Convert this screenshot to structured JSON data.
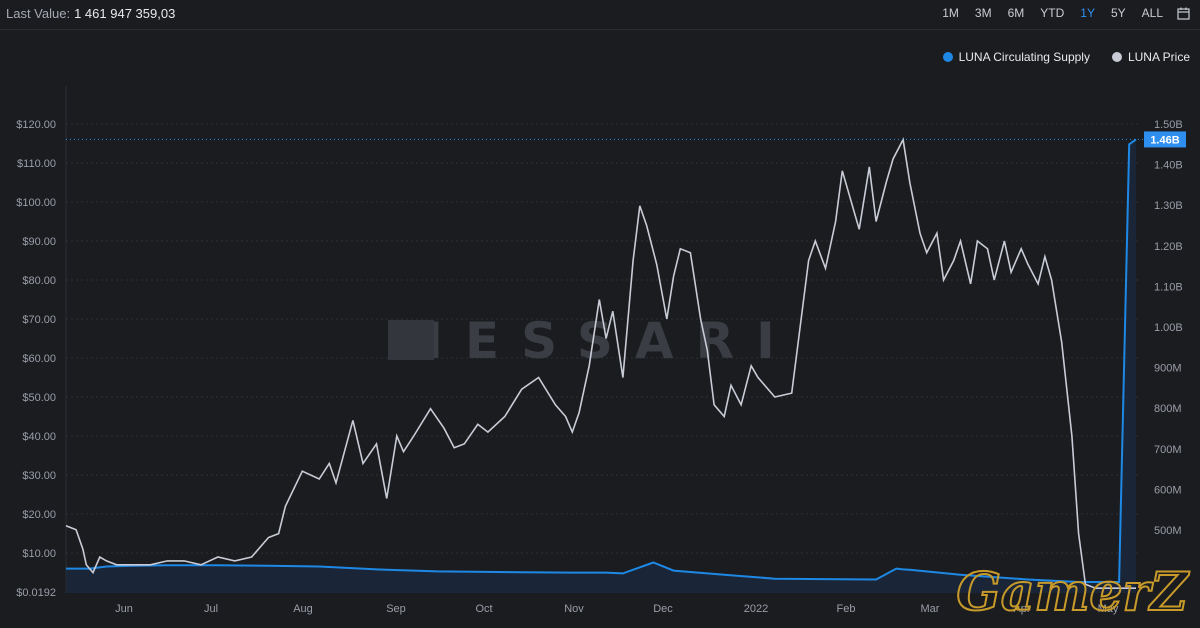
{
  "header": {
    "last_value_label": "Last Value:",
    "last_value": "1 461 947 359,03",
    "ranges": [
      "1M",
      "3M",
      "6M",
      "YTD",
      "1Y",
      "5Y",
      "ALL"
    ],
    "active_range": "1Y"
  },
  "colors": {
    "supply": "#1e88e5",
    "price": "#c9ccd6",
    "accent": "#2f8ff0"
  },
  "icons": {
    "calendar": "calendar-icon"
  },
  "watermark": "MESSARI",
  "overlay_text": "GamerZ",
  "chart_data": {
    "type": "line",
    "x_tick_labels": [
      "Jun",
      "Jul",
      "Aug",
      "Sep",
      "Oct",
      "Nov",
      "Dec",
      "2022",
      "Feb",
      "Mar",
      "Apr",
      "May"
    ],
    "y_left_ticks": [
      "$0.0192",
      "$10.00",
      "$20.00",
      "$30.00",
      "$40.00",
      "$50.00",
      "$60.00",
      "$70.00",
      "$80.00",
      "$90.00",
      "$100.00",
      "$110.00",
      "$120.00"
    ],
    "y_right_ticks": [
      "500M",
      "600M",
      "700M",
      "800M",
      "900M",
      "1.00B",
      "1.10B",
      "1.20B",
      "1.30B",
      "1.40B",
      "1.50B"
    ],
    "y_left_range": [
      0.0192,
      120
    ],
    "y_right_range": [
      500000000,
      1500000000
    ],
    "grid": true,
    "legend_position": "top-right",
    "last_value_tag": "1.46B",
    "series": [
      {
        "name": "LUNA Circulating Supply",
        "axis": "right",
        "x": [
          0,
          7,
          12,
          20,
          30,
          45,
          60,
          75,
          95,
          110,
          135,
          150,
          160,
          165,
          174,
          180,
          195,
          210,
          240,
          246,
          248,
          250,
          265,
          285,
          300,
          312,
          315,
          317
        ],
        "values": [
          405,
          405,
          410,
          412,
          413,
          413,
          412,
          410,
          402,
          398,
          396,
          395,
          395,
          393,
          420,
          400,
          390,
          380,
          378,
          405,
          403,
          402,
          390,
          378,
          372,
          372,
          1450,
          1462
        ]
      },
      {
        "name": "LUNA Price",
        "axis": "left",
        "x": [
          0,
          3,
          5,
          6,
          8,
          10,
          12,
          15,
          20,
          25,
          30,
          35,
          40,
          45,
          50,
          55,
          60,
          63,
          65,
          70,
          75,
          78,
          80,
          85,
          88,
          92,
          95,
          98,
          100,
          103,
          108,
          112,
          115,
          118,
          122,
          125,
          130,
          135,
          140,
          145,
          148,
          150,
          152,
          155,
          158,
          160,
          162,
          165,
          168,
          170,
          172,
          175,
          178,
          180,
          182,
          185,
          188,
          190,
          192,
          195,
          197,
          200,
          203,
          205,
          210,
          215,
          220,
          222,
          225,
          228,
          230,
          235,
          238,
          240,
          243,
          245,
          248,
          250,
          253,
          255,
          258,
          260,
          263,
          265,
          268,
          270,
          273,
          275,
          278,
          280,
          283,
          285,
          288,
          290,
          292,
          295,
          298,
          300,
          302,
          305,
          308,
          310,
          312,
          313,
          315,
          317
        ],
        "values": [
          17,
          16,
          11,
          7,
          5,
          9,
          8,
          7,
          7,
          7,
          8,
          8,
          7,
          9,
          8,
          9,
          14,
          15,
          22,
          31,
          29,
          33,
          28,
          44,
          33,
          38,
          24,
          40,
          36,
          40,
          47,
          42,
          37,
          38,
          43,
          41,
          45,
          52,
          55,
          48,
          45,
          41,
          46,
          58,
          75,
          65,
          72,
          55,
          85,
          99,
          94,
          84,
          70,
          81,
          88,
          87,
          70,
          62,
          48,
          45,
          53,
          48,
          58,
          55,
          50,
          51,
          85,
          90,
          83,
          95,
          108,
          93,
          109,
          95,
          105,
          111,
          116,
          105,
          92,
          87,
          92,
          80,
          85,
          90,
          79,
          90,
          88,
          80,
          90,
          82,
          88,
          84,
          79,
          86,
          80,
          64,
          40,
          15,
          2,
          1,
          1,
          1,
          1,
          1,
          1,
          1
        ]
      }
    ]
  }
}
